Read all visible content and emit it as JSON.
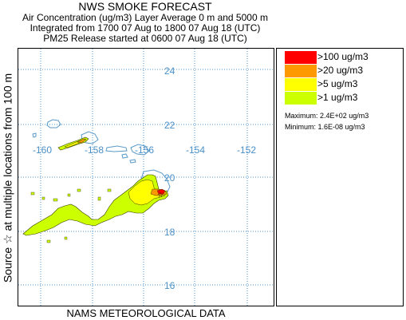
{
  "header": {
    "title": "NWS SMOKE FORECAST",
    "line2": "Air Concentration (ug/m3) Layer Average    0 m and  5000 m",
    "line3": "Integrated from 1700 07 Aug to 1800 07 Aug 18 (UTC)",
    "line4": "PM25 Release started at 0600 07 Aug 18 (UTC)"
  },
  "side_label": "Source ☆   at multiple locations     from  100 m",
  "bottom_label": "NAMS METEOROLOGICAL DATA",
  "map": {
    "lat_labels": [
      "24",
      "22",
      "20",
      "18",
      "16"
    ],
    "lon_labels": [
      "-160",
      "-158",
      "-156",
      "-154",
      "-152"
    ],
    "grid_color": "#4a90c8",
    "land_outline_color": "#5a9ac8",
    "source_marker": "star-icon"
  },
  "legend": {
    "items": [
      {
        "label": ">100 ug/m3",
        "color": "#ff0000"
      },
      {
        "label": ">20 ug/m3",
        "color": "#ff9900"
      },
      {
        "label": ">5 ug/m3",
        "color": "#ffff00"
      },
      {
        "label": ">1 ug/m3",
        "color": "#ccff00"
      }
    ],
    "maximum": "Maximum: 2.4E+02 ug/m3",
    "minimum": "Minimum: 1.6E-08 ug/m3"
  }
}
